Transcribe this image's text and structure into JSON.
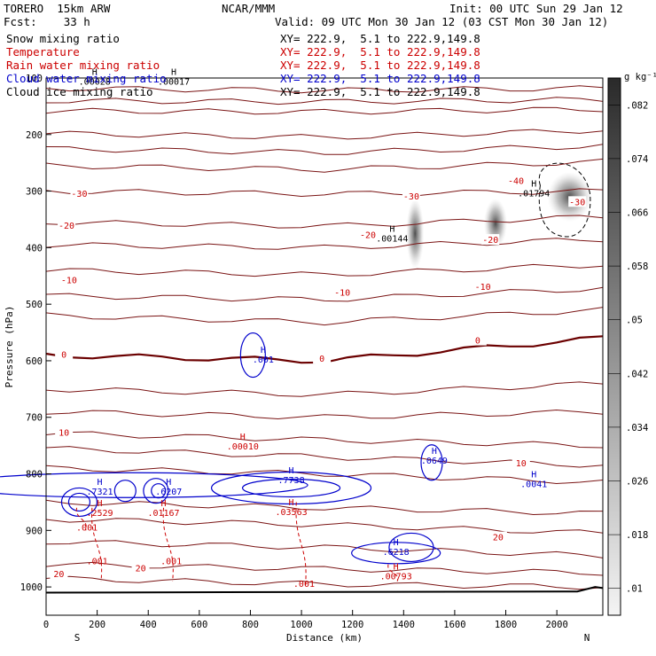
{
  "header": {
    "model": "TORERO  15km ARW",
    "center": "NCAR/MMM",
    "init": "Init: 00 UTC Sun 29 Jan 12",
    "fcst": "Fcst:    33 h",
    "valid": "Valid: 09 UTC Mon 30 Jan 12 (03 CST Mon 30 Jan 12)"
  },
  "fields": [
    {
      "name": "Snow mixing ratio",
      "xy": "XY= 222.9,  5.1 to 222.9,149.8",
      "color": "#000000"
    },
    {
      "name": "Temperature",
      "xy": "XY= 222.9,  5.1 to 222.9,149.8",
      "color": "#cc0000"
    },
    {
      "name": "Rain water mixing ratio",
      "xy": "XY= 222.9,  5.1 to 222.9,149.8",
      "color": "#cc0000"
    },
    {
      "name": "Cloud water mixing ratio",
      "xy": "XY= 222.9,  5.1 to 222.9,149.8",
      "color": "#0000cc"
    },
    {
      "name": "Cloud ice mixing ratio",
      "xy": "XY= 222.9,  5.1 to 222.9,149.8",
      "color": "#000000"
    }
  ],
  "colors": {
    "temperature": "#7a1414",
    "freezing": "#6b0000",
    "rain": "#cc0000",
    "cloud_water": "#0000cc",
    "snow_shade": "#555555",
    "terrain": "#000000"
  },
  "chart_data": {
    "type": "contour-cross-section",
    "xlabel": "Distance (km)",
    "ylabel": "Pressure (hPa)",
    "xlim": [
      0,
      2180
    ],
    "ylim": [
      1050,
      100
    ],
    "x_ticks": [
      0,
      200,
      400,
      600,
      800,
      1000,
      1200,
      1400,
      1600,
      1800,
      2000
    ],
    "y_ticks": [
      100,
      200,
      300,
      400,
      500,
      600,
      700,
      800,
      900,
      1000
    ],
    "y_tick_labels": [
      "100",
      "200",
      "300",
      "400",
      "500",
      "600",
      "700",
      "800",
      "900",
      "1000"
    ],
    "x_end_labels": {
      "left": "S",
      "right": "N"
    },
    "colorbar": {
      "unit": "g kg⁻¹",
      "levels": [
        ".01",
        ".018",
        ".026",
        ".034",
        ".042",
        ".05",
        ".058",
        ".066",
        ".074",
        ".082"
      ]
    },
    "temperature_contour_labels": [
      {
        "text": "-40",
        "x": 1840,
        "p": 283,
        "color": "rain"
      },
      {
        "text": "-30",
        "x": 130,
        "p": 305,
        "color": "rain"
      },
      {
        "text": "-30",
        "x": 1430,
        "p": 310,
        "color": "rain"
      },
      {
        "text": "-30",
        "x": 2080,
        "p": 320,
        "color": "rain"
      },
      {
        "text": "-20",
        "x": 80,
        "p": 362,
        "color": "rain"
      },
      {
        "text": "-20",
        "x": 1260,
        "p": 378,
        "color": "rain"
      },
      {
        "text": "-20",
        "x": 1740,
        "p": 387,
        "color": "rain"
      },
      {
        "text": "-10",
        "x": 90,
        "p": 458,
        "color": "rain"
      },
      {
        "text": "-10",
        "x": 1160,
        "p": 480,
        "color": "rain"
      },
      {
        "text": "-10",
        "x": 1710,
        "p": 470,
        "color": "rain"
      },
      {
        "text": "0",
        "x": 70,
        "p": 590,
        "color": "rain"
      },
      {
        "text": "0",
        "x": 1080,
        "p": 597,
        "color": "rain"
      },
      {
        "text": "0",
        "x": 1690,
        "p": 565,
        "color": "rain"
      },
      {
        "text": "10",
        "x": 70,
        "p": 728,
        "color": "rain"
      },
      {
        "text": "10",
        "x": 1860,
        "p": 782,
        "color": "rain"
      },
      {
        "text": "20",
        "x": 1770,
        "p": 913,
        "color": "rain"
      },
      {
        "text": "20",
        "x": 370,
        "p": 968,
        "color": "rain"
      },
      {
        "text": "20",
        "x": 50,
        "p": 978,
        "color": "rain"
      }
    ],
    "rain_labels": [
      {
        "text": ".001",
        "x": 160,
        "p": 900
      },
      {
        "text": ".001",
        "x": 200,
        "p": 960
      },
      {
        "text": ".001",
        "x": 490,
        "p": 960
      },
      {
        "text": ".001",
        "x": 1010,
        "p": 1000
      }
    ],
    "max_labels": [
      {
        "h": "H",
        "value": ".00028",
        "x": 190,
        "p": 110,
        "color": "black"
      },
      {
        "h": "H",
        "value": ".00017",
        "x": 500,
        "p": 110,
        "color": "black"
      },
      {
        "h": "H",
        "value": ".01794",
        "x": 1910,
        "p": 308,
        "color": "black"
      },
      {
        "h": "H",
        "value": ".00144",
        "x": 1355,
        "p": 388,
        "color": "black"
      },
      {
        "h": "H",
        "value": ".00010",
        "x": 770,
        "p": 755,
        "color": "rain"
      },
      {
        "h": "H",
        "value": ".7321",
        "x": 210,
        "p": 835,
        "color": "cloud"
      },
      {
        "h": "H",
        "value": ".6207",
        "x": 480,
        "p": 835,
        "color": "cloud"
      },
      {
        "h": "H",
        "value": ".2529",
        "x": 210,
        "p": 873,
        "color": "rain"
      },
      {
        "h": "H",
        "value": ".01167",
        "x": 460,
        "p": 873,
        "color": "rain"
      },
      {
        "h": "H",
        "value": ".7738",
        "x": 960,
        "p": 815,
        "color": "cloud"
      },
      {
        "h": "H",
        "value": ".03563",
        "x": 960,
        "p": 871,
        "color": "rain"
      },
      {
        "h": "H",
        "value": ".0649",
        "x": 1520,
        "p": 780,
        "color": "cloud"
      },
      {
        "h": "H",
        "value": ".0041",
        "x": 1910,
        "p": 822,
        "color": "cloud"
      },
      {
        "h": "H",
        "value": ".001",
        "x": 850,
        "p": 602,
        "color": "cloud"
      },
      {
        "h": "H",
        "value": ".6218",
        "x": 1370,
        "p": 942,
        "color": "cloud"
      },
      {
        "h": "H",
        "value": ".00793",
        "x": 1370,
        "p": 985,
        "color": "rain"
      }
    ]
  }
}
